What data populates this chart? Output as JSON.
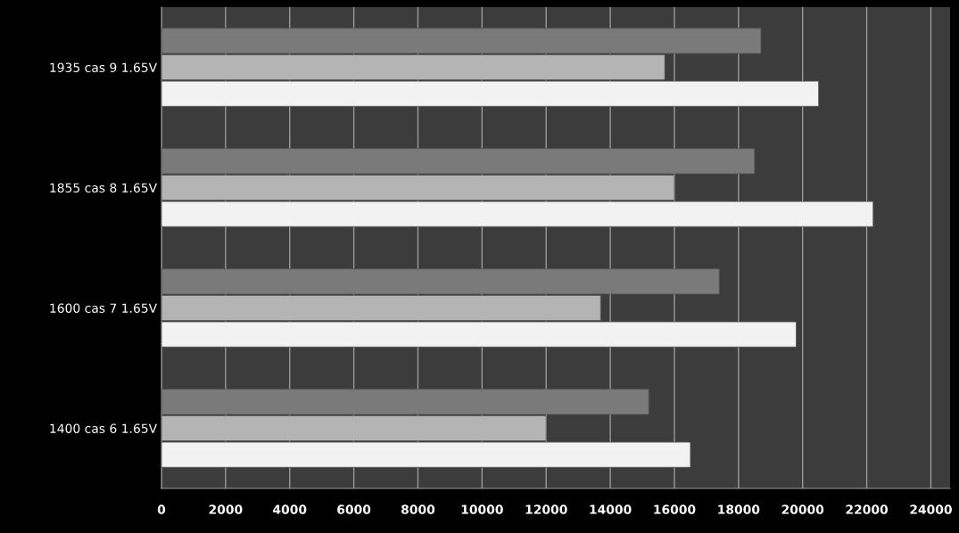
{
  "chart_data": {
    "type": "bar",
    "orientation": "horizontal",
    "categories": [
      "1935 cas 9 1.65V",
      "1855 cas 8 1.65V",
      "1600 cas 7 1.65V",
      "1400 cas 6 1.65V"
    ],
    "series": [
      {
        "color": "#7a7a7a",
        "values": [
          18700,
          18500,
          17400,
          15200
        ]
      },
      {
        "color": "#b4b4b4",
        "values": [
          15700,
          16000,
          13700,
          12000
        ]
      },
      {
        "color": "#f2f2f2",
        "values": [
          20500,
          22200,
          19800,
          16500
        ]
      }
    ],
    "xlim": [
      0,
      24600
    ],
    "xticks": [
      0,
      2000,
      4000,
      6000,
      8000,
      10000,
      12000,
      14000,
      16000,
      18000,
      20000,
      22000,
      24000
    ],
    "grid": "x"
  }
}
